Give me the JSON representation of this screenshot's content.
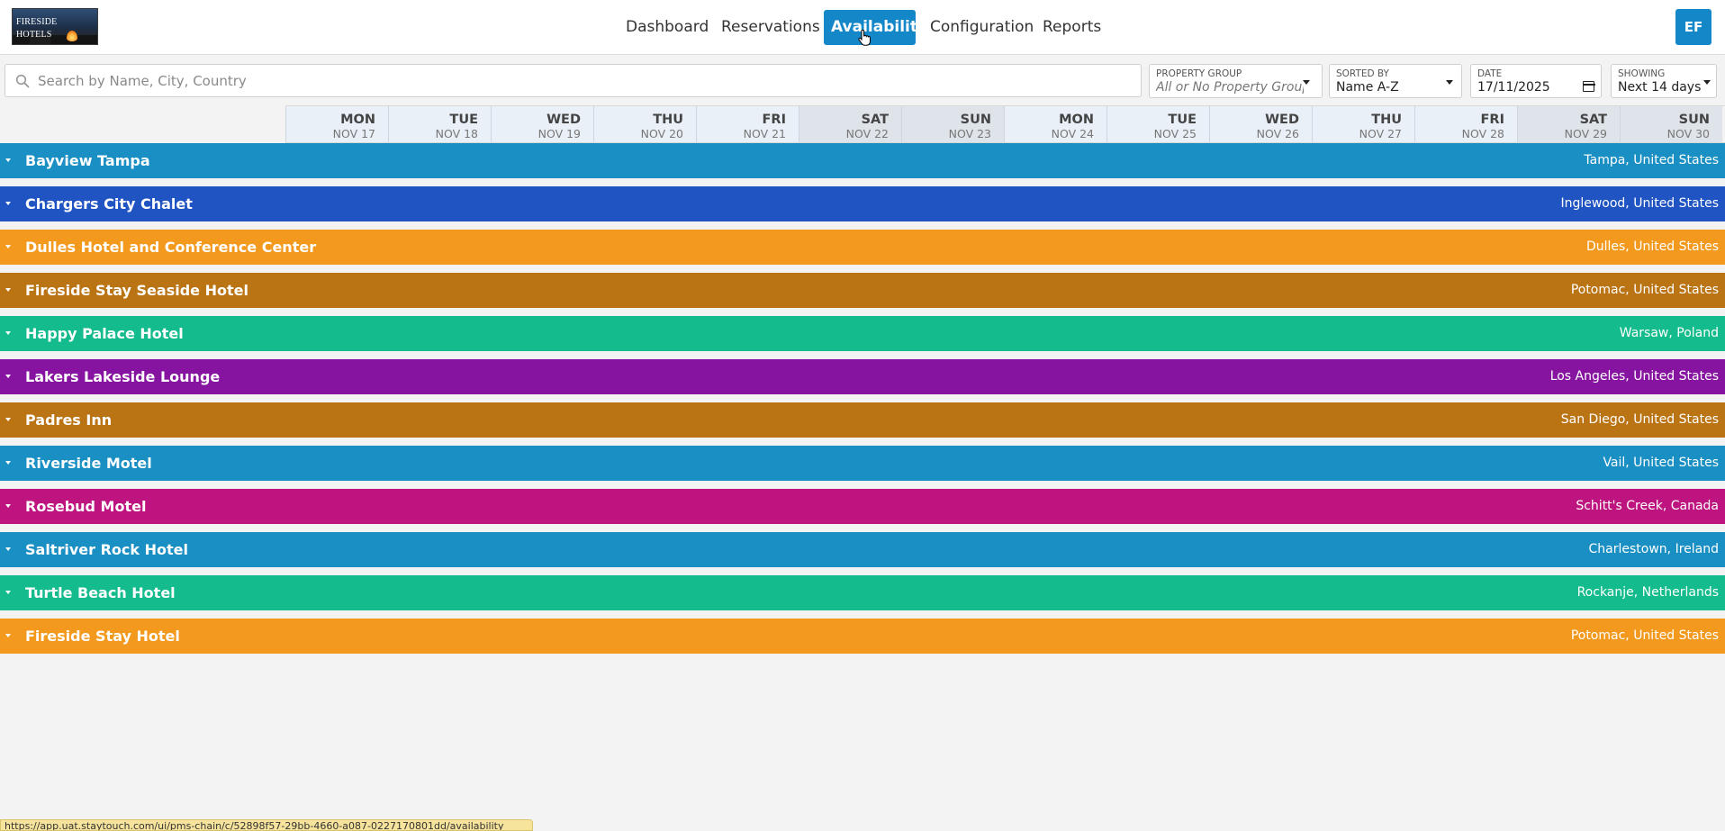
{
  "logo": {
    "line1": "FIRESIDE",
    "line2": "HOTELS"
  },
  "nav": {
    "items": [
      {
        "label": "Dashboard",
        "active": false
      },
      {
        "label": "Reservations",
        "active": false
      },
      {
        "label": "Availability",
        "active": true
      },
      {
        "label": "Configuration",
        "active": false
      },
      {
        "label": "Reports",
        "active": false
      }
    ],
    "user_initials": "EF"
  },
  "colors": {
    "accent": "#1487c9",
    "row_blue": "#1a8fc3",
    "row_dark_blue": "#1f54c2",
    "row_orange": "#f39a1e",
    "row_brown": "#bb7414",
    "row_teal": "#14bb8d",
    "row_purple": "#8714a0",
    "row_magenta": "#bd147f"
  },
  "search": {
    "placeholder": "Search by Name, City, Country",
    "value": "",
    "icon": "search-icon"
  },
  "filters": {
    "property_group": {
      "label": "PROPERTY GROUP",
      "value": "All or No Property Group"
    },
    "sorted_by": {
      "label": "SORTED BY",
      "value": "Name A-Z"
    },
    "date": {
      "label": "DATE",
      "value": "17/11/2025",
      "icon": "calendar-icon"
    },
    "showing": {
      "label": "SHOWING",
      "value": "Next 14 days"
    }
  },
  "days": [
    {
      "dow": "MON",
      "date": "NOV 17",
      "weekend": false
    },
    {
      "dow": "TUE",
      "date": "NOV 18",
      "weekend": false
    },
    {
      "dow": "WED",
      "date": "NOV 19",
      "weekend": false
    },
    {
      "dow": "THU",
      "date": "NOV 20",
      "weekend": false
    },
    {
      "dow": "FRI",
      "date": "NOV 21",
      "weekend": false
    },
    {
      "dow": "SAT",
      "date": "NOV 22",
      "weekend": true
    },
    {
      "dow": "SUN",
      "date": "NOV 23",
      "weekend": true
    },
    {
      "dow": "MON",
      "date": "NOV 24",
      "weekend": false
    },
    {
      "dow": "TUE",
      "date": "NOV 25",
      "weekend": false
    },
    {
      "dow": "WED",
      "date": "NOV 26",
      "weekend": false
    },
    {
      "dow": "THU",
      "date": "NOV 27",
      "weekend": false
    },
    {
      "dow": "FRI",
      "date": "NOV 28",
      "weekend": false
    },
    {
      "dow": "SAT",
      "date": "NOV 29",
      "weekend": true
    },
    {
      "dow": "SUN",
      "date": "NOV 30",
      "weekend": true
    }
  ],
  "properties": [
    {
      "name": "Bayview Tampa",
      "location": "Tampa, United States",
      "color": "#1a8fc3"
    },
    {
      "name": "Chargers City Chalet",
      "location": "Inglewood, United States",
      "color": "#1f54c2"
    },
    {
      "name": "Dulles Hotel and Conference Center",
      "location": "Dulles, United States",
      "color": "#f39a1e"
    },
    {
      "name": "Fireside Stay Seaside Hotel",
      "location": "Potomac, United States",
      "color": "#bb7414"
    },
    {
      "name": "Happy Palace Hotel",
      "location": "Warsaw, Poland",
      "color": "#14bb8d"
    },
    {
      "name": "Lakers Lakeside Lounge",
      "location": "Los Angeles, United States",
      "color": "#8714a0"
    },
    {
      "name": "Padres Inn",
      "location": "San Diego, United States",
      "color": "#bb7414"
    },
    {
      "name": "Riverside Motel",
      "location": "Vail, United States",
      "color": "#1a8fc3"
    },
    {
      "name": "Rosebud Motel",
      "location": "Schitt's Creek, Canada",
      "color": "#bd147f"
    },
    {
      "name": "Saltriver Rock Hotel",
      "location": "Charlestown, Ireland",
      "color": "#1a8fc3"
    },
    {
      "name": "Turtle Beach Hotel",
      "location": "Rockanje, Netherlands",
      "color": "#14bb8d"
    },
    {
      "name": "Fireside Stay Hotel",
      "location": "Potomac, United States",
      "color": "#f39a1e"
    }
  ],
  "status_url": "https://app.uat.staytouch.com/ui/pms-chain/c/52898f57-29bb-4660-a087-0227170801dd/availability"
}
